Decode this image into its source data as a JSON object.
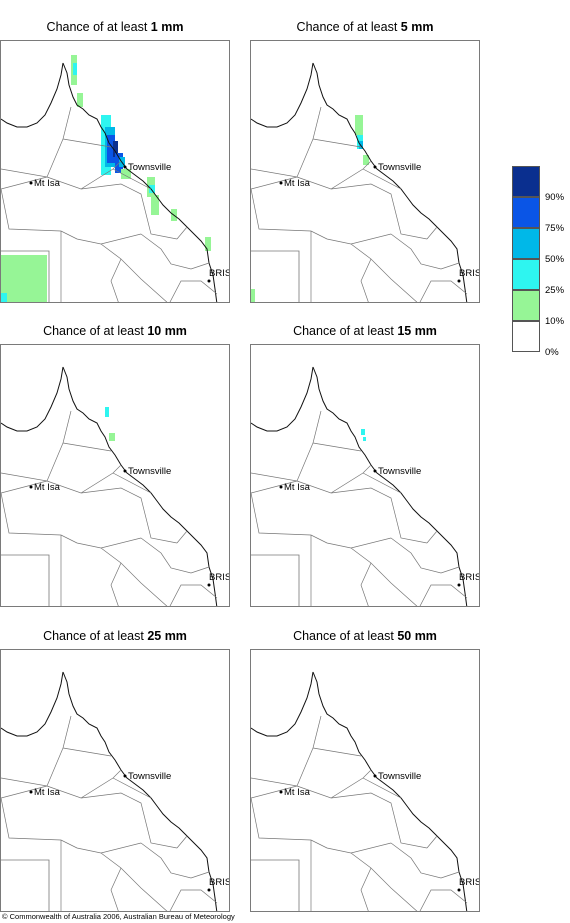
{
  "panels": [
    {
      "prefix": "Chance of at least ",
      "amount": "1 mm"
    },
    {
      "prefix": "Chance of at least ",
      "amount": "5 mm"
    },
    {
      "prefix": "Chance of at least ",
      "amount": "10 mm"
    },
    {
      "prefix": "Chance of at least ",
      "amount": "15 mm"
    },
    {
      "prefix": "Chance of at least ",
      "amount": "25 mm"
    },
    {
      "prefix": "Chance of at least ",
      "amount": "50 mm"
    }
  ],
  "map_labels": {
    "town1": "Townsville",
    "town2": "Mt Isa",
    "city": "BRIS"
  },
  "legend": {
    "colors": [
      "#0a2f8f",
      "#0a55e6",
      "#00b8e8",
      "#2ef5f0",
      "#96f596",
      "#ffffff"
    ],
    "labels": [
      "90%",
      "75%",
      "50%",
      "25%",
      "10%",
      "0%"
    ]
  },
  "copyright": "© Commonwealth of Australia 2006, Australian Bureau of Meteorology"
}
